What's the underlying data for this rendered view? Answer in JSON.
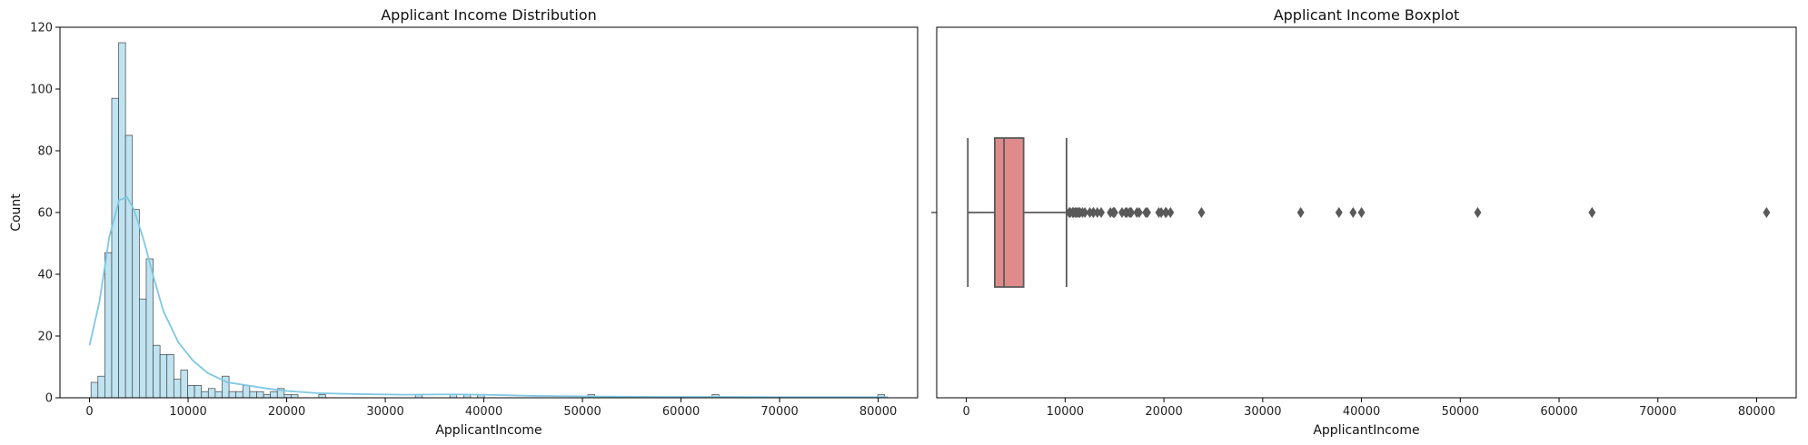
{
  "chart_data": [
    {
      "type": "bar",
      "title": "Applicant Income Distribution",
      "xlabel": "ApplicantIncome",
      "ylabel": "Count",
      "xlim": [
        -3000,
        84000
      ],
      "ylim": [
        0,
        120
      ],
      "xticks": [
        0,
        10000,
        20000,
        30000,
        40000,
        50000,
        60000,
        70000,
        80000
      ],
      "yticks": [
        0,
        20,
        40,
        60,
        80,
        100,
        120
      ],
      "bin_start": 150,
      "bin_width": 700,
      "counts": [
        5,
        7,
        47,
        97,
        115,
        85,
        61,
        32,
        45,
        17,
        14,
        14,
        6,
        9,
        4,
        4,
        2,
        3,
        2,
        7,
        2,
        2,
        4,
        2,
        2,
        1,
        2,
        3,
        1,
        1,
        0,
        0,
        0,
        1,
        0,
        0,
        0,
        0,
        0,
        0,
        0,
        0,
        0,
        0,
        0,
        0,
        0,
        1,
        0,
        0,
        0,
        0,
        1,
        0,
        1,
        0,
        1,
        0,
        0,
        0,
        0,
        0,
        0,
        0,
        0,
        0,
        0,
        0,
        0,
        0,
        0,
        0,
        1,
        0,
        0,
        0,
        0,
        0,
        0,
        0,
        0,
        0,
        0,
        0,
        0,
        0,
        0,
        0,
        0,
        0,
        1,
        0,
        0,
        0,
        0,
        0,
        0,
        0,
        0,
        0,
        0,
        0,
        0,
        0,
        0,
        0,
        0,
        0,
        0,
        0,
        0,
        0,
        0,
        0,
        1
      ],
      "kde": {
        "x": [
          0,
          1000,
          2000,
          3000,
          3800,
          4500,
          5500,
          6500,
          7500,
          9000,
          10500,
          12000,
          14000,
          16000,
          18000,
          20000,
          23000,
          27000,
          32000,
          37000,
          40000,
          45000,
          52000,
          58000,
          63500,
          70000,
          76000,
          81000
        ],
        "y": [
          17,
          31,
          52,
          64,
          65,
          61,
          51,
          39,
          28,
          18,
          12,
          8,
          5,
          4,
          3,
          2.2,
          1.5,
          1.2,
          1.0,
          1.1,
          1.0,
          0.6,
          0.4,
          0.3,
          0.3,
          0.2,
          0.2,
          0.2
        ]
      },
      "bar_fill": "#bfe3f1",
      "bar_edge": "#444444",
      "kde_color": "#7ec8e3"
    },
    {
      "type": "box",
      "title": "Applicant Income Boxplot",
      "xlabel": "ApplicantIncome",
      "xlim": [
        -3000,
        84000
      ],
      "xticks": [
        0,
        10000,
        20000,
        30000,
        40000,
        50000,
        60000,
        70000,
        80000
      ],
      "whisker_low": 150,
      "q1": 2875,
      "median": 3812,
      "q3": 5795,
      "whisker_high": 10139,
      "outliers": [
        10408,
        10513,
        10750,
        10833,
        11000,
        11146,
        11250,
        11417,
        11500,
        11757,
        12000,
        12500,
        12841,
        12876,
        13262,
        13650,
        14583,
        14866,
        14880,
        14999,
        15000,
        15759,
        16120,
        16250,
        16525,
        16667,
        16692,
        17263,
        17500,
        18165,
        18333,
        19484,
        19730,
        20166,
        20233,
        20667,
        23803,
        33846,
        37719,
        39147,
        39999,
        51763,
        63337,
        81000
      ],
      "box_fill": "#e08b8b",
      "line_color": "#5a5a5a"
    }
  ]
}
